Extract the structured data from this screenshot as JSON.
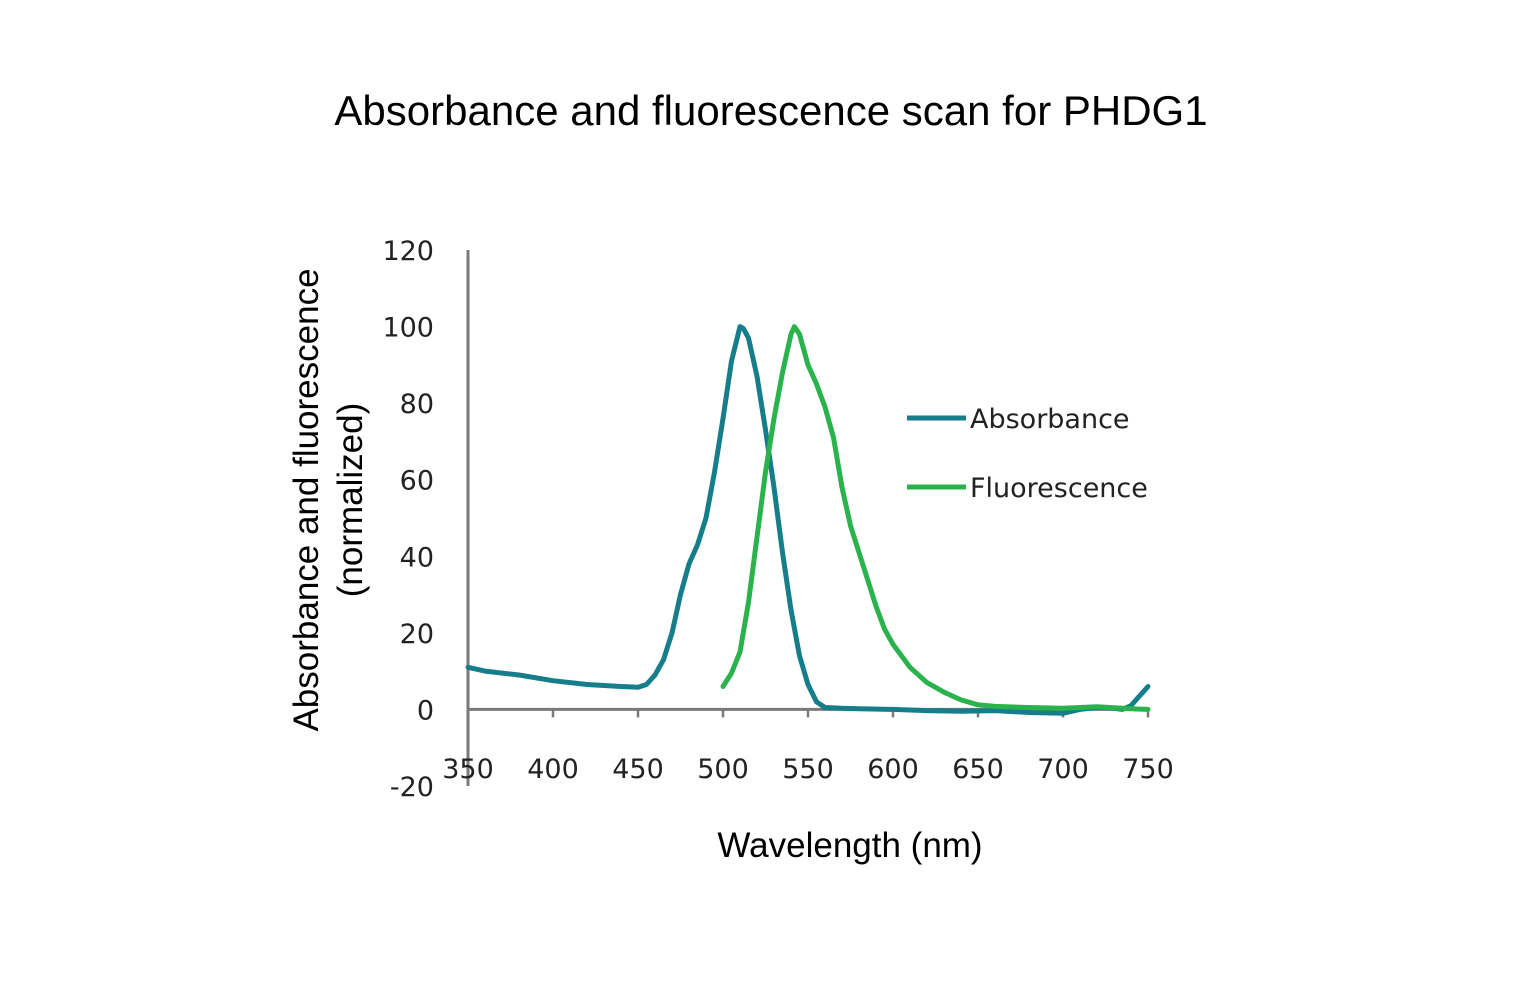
{
  "chart_data": {
    "type": "line",
    "title": "Absorbance and fluorescence scan for PHDG1",
    "xlabel": "Wavelength (nm)",
    "ylabel_lines": [
      "Absorbance and fluorescence",
      "(normalized)"
    ],
    "xlim": [
      350,
      750
    ],
    "ylim": [
      -20,
      120
    ],
    "xticks": [
      350,
      400,
      450,
      500,
      550,
      600,
      650,
      700,
      750
    ],
    "yticks": [
      -20,
      0,
      20,
      40,
      60,
      80,
      100,
      120
    ],
    "legend": "right",
    "grid": false,
    "series": [
      {
        "name": "Absorbance",
        "color": "#167e8a",
        "points": [
          [
            350,
            11
          ],
          [
            360,
            10
          ],
          [
            380,
            9
          ],
          [
            400,
            7.5
          ],
          [
            420,
            6.5
          ],
          [
            440,
            6
          ],
          [
            450,
            5.8
          ],
          [
            455,
            6.5
          ],
          [
            460,
            9
          ],
          [
            465,
            13
          ],
          [
            470,
            20
          ],
          [
            475,
            30
          ],
          [
            480,
            38
          ],
          [
            485,
            43
          ],
          [
            490,
            50
          ],
          [
            495,
            62
          ],
          [
            500,
            76
          ],
          [
            505,
            91
          ],
          [
            510,
            100
          ],
          [
            512,
            99.5
          ],
          [
            515,
            97
          ],
          [
            520,
            87
          ],
          [
            525,
            73
          ],
          [
            530,
            58
          ],
          [
            535,
            41
          ],
          [
            540,
            26
          ],
          [
            545,
            14
          ],
          [
            550,
            6.5
          ],
          [
            555,
            2
          ],
          [
            560,
            0.5
          ],
          [
            570,
            0.3
          ],
          [
            580,
            0.2
          ],
          [
            600,
            0
          ],
          [
            620,
            -0.3
          ],
          [
            640,
            -0.5
          ],
          [
            660,
            -0.3
          ],
          [
            680,
            -0.8
          ],
          [
            700,
            -1
          ],
          [
            710,
            0
          ],
          [
            720,
            0.5
          ],
          [
            730,
            0.3
          ],
          [
            735,
            0
          ],
          [
            740,
            1
          ],
          [
            745,
            3.5
          ],
          [
            750,
            6
          ]
        ]
      },
      {
        "name": "Fluorescence",
        "color": "#2ab24c",
        "points": [
          [
            500,
            6
          ],
          [
            505,
            9.5
          ],
          [
            510,
            15
          ],
          [
            515,
            28
          ],
          [
            520,
            45
          ],
          [
            525,
            62
          ],
          [
            530,
            76
          ],
          [
            535,
            88
          ],
          [
            540,
            98
          ],
          [
            542,
            100
          ],
          [
            545,
            98
          ],
          [
            550,
            90
          ],
          [
            555,
            85
          ],
          [
            560,
            79
          ],
          [
            565,
            71
          ],
          [
            570,
            58
          ],
          [
            575,
            48
          ],
          [
            580,
            41
          ],
          [
            585,
            34
          ],
          [
            590,
            27
          ],
          [
            595,
            21
          ],
          [
            600,
            17
          ],
          [
            610,
            11
          ],
          [
            620,
            7
          ],
          [
            630,
            4.5
          ],
          [
            640,
            2.5
          ],
          [
            650,
            1.2
          ],
          [
            660,
            0.8
          ],
          [
            680,
            0.5
          ],
          [
            700,
            0.3
          ],
          [
            720,
            0.7
          ],
          [
            740,
            0.2
          ],
          [
            750,
            0
          ]
        ]
      }
    ]
  }
}
